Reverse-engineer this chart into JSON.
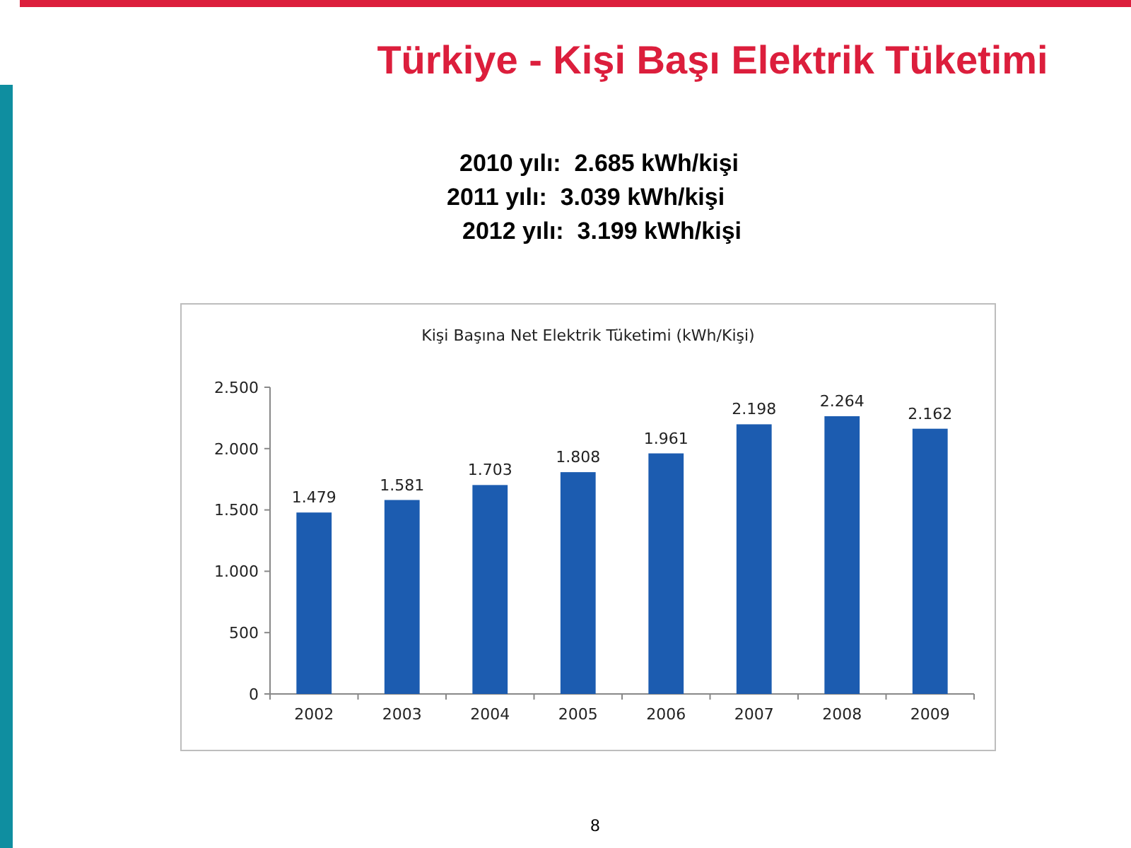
{
  "chart_data": {
    "type": "bar",
    "title": "Türkiye - Kişi Başı Elektrik Tüketimi",
    "subtitle": "Kişi Başına Net Elektrik Tüketimi (kWh/Kişi)",
    "categories": [
      "2002",
      "2003",
      "2004",
      "2005",
      "2006",
      "2007",
      "2008",
      "2009"
    ],
    "values": [
      1479,
      1581,
      1703,
      1808,
      1961,
      2198,
      2264,
      2162
    ],
    "value_labels": [
      "1.479",
      "1.581",
      "1.703",
      "1.808",
      "1.961",
      "2.198",
      "2.264",
      "2.162"
    ],
    "color": "#1c5cb0",
    "ylim": [
      0,
      2500
    ],
    "yticks": [
      0,
      500,
      {
        "value": 1000,
        "label": "1.000"
      },
      {
        "value": 1500,
        "label": "1.500"
      },
      {
        "value": 2000,
        "label": "2.000"
      },
      {
        "value": 2500,
        "label": "2.500"
      }
    ],
    "annotations": [
      "2010 yılı:  2.685 kWh/kişi",
      "2011 yılı:  3.039 kWh/kişi",
      "2012 yılı:  3.199 kWh/kişi",
      "8"
    ]
  }
}
